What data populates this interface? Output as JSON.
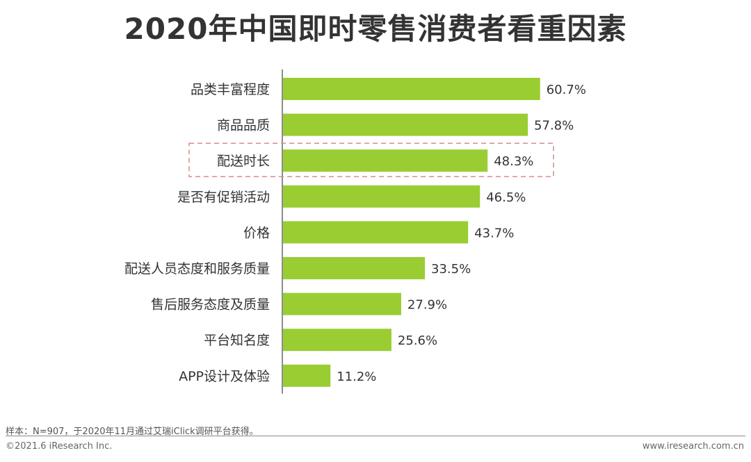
{
  "chart_data": {
    "type": "bar",
    "orientation": "horizontal",
    "title": "2020年中国即时零售消费者看重因素",
    "categories": [
      "品类丰富程度",
      "商品品质",
      "配送时长",
      "是否有促销活动",
      "价格",
      "配送人员态度和服务质量",
      "售后服务态度及质量",
      "平台知名度",
      "APP设计及体验"
    ],
    "values": [
      60.7,
      57.8,
      48.3,
      46.5,
      43.7,
      33.5,
      27.9,
      25.6,
      11.2
    ],
    "value_labels": [
      "60.7%",
      "57.8%",
      "48.3%",
      "46.5%",
      "43.7%",
      "33.5%",
      "27.9%",
      "25.6%",
      "11.2%"
    ],
    "unit": "%",
    "highlighted_category": "配送时长",
    "xlim": [
      0,
      66
    ],
    "grid": false,
    "legend": "none",
    "colors": {
      "bar": "#9ACD32",
      "highlight_box": "#D98C8C",
      "axis": "#666666"
    }
  },
  "footnote": "样本：N=907，于2020年11月通过艾瑞iClick调研平台获得。",
  "footer": {
    "copyright": "©2021.6 iResearch Inc.",
    "website": "www.iresearch.com.cn"
  }
}
